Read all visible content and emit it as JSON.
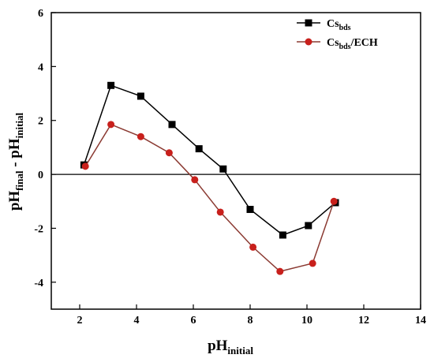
{
  "chart_data": {
    "type": "line",
    "xlabel": {
      "main": "pH",
      "sub": "initial"
    },
    "ylabel": {
      "main1": "pH",
      "sub1": "final",
      "sep": " - ",
      "main2": "pH",
      "sub2": "initial"
    },
    "xlim": [
      1,
      14
    ],
    "ylim": [
      -5,
      6
    ],
    "x_ticks": [
      2,
      4,
      6,
      8,
      10,
      12,
      14
    ],
    "y_ticks": [
      -4,
      -2,
      0,
      2,
      4,
      6
    ],
    "zero_line": true,
    "grid": false,
    "legend_position": "top-right",
    "series": [
      {
        "name": {
          "main": "Cs",
          "sub": "bds",
          "suffix": ""
        },
        "color": "#000000",
        "marker": "square",
        "x": [
          2.15,
          3.1,
          4.15,
          5.25,
          6.2,
          7.05,
          8.0,
          9.15,
          10.05,
          11.0
        ],
        "y": [
          0.35,
          3.3,
          2.9,
          1.85,
          0.95,
          0.2,
          -1.3,
          -2.25,
          -1.9,
          -1.05
        ]
      },
      {
        "name": {
          "main": "Cs",
          "sub": "bds",
          "suffix": "/ECH"
        },
        "color": "#c8201c",
        "line_color": "#8b3a32",
        "marker": "circle",
        "x": [
          2.2,
          3.1,
          4.15,
          5.15,
          6.05,
          6.95,
          8.1,
          9.05,
          10.2,
          10.95
        ],
        "y": [
          0.3,
          1.85,
          1.4,
          0.8,
          -0.2,
          -1.4,
          -2.7,
          -3.6,
          -3.3,
          -1.0
        ]
      }
    ]
  }
}
